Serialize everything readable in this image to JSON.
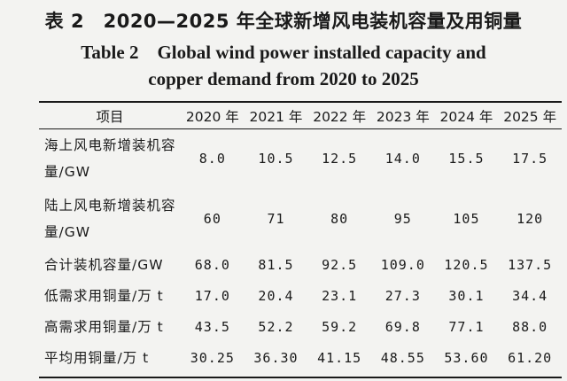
{
  "title_cn": "表 2　2020—2025 年全球新增风电装机容量及用铜量",
  "title_en_line1": "Table 2　Global wind power installed capacity and",
  "title_en_line2": "copper demand from 2020 to 2025",
  "table": {
    "headers": [
      "项目",
      "2020 年",
      "2021 年",
      "2022 年",
      "2023 年",
      "2024 年",
      "2025 年"
    ],
    "rows": [
      {
        "label": "海上风电新增装机容量/GW",
        "values": [
          "8.0",
          "10.5",
          "12.5",
          "14.0",
          "15.5",
          "17.5"
        ]
      },
      {
        "label": "陆上风电新增装机容量/GW",
        "values": [
          "60",
          "71",
          "80",
          "95",
          "105",
          "120"
        ]
      },
      {
        "label": "合计装机容量/GW",
        "values": [
          "68.0",
          "81.5",
          "92.5",
          "109.0",
          "120.5",
          "137.5"
        ]
      },
      {
        "label": "低需求用铜量/万 t",
        "values": [
          "17.0",
          "20.4",
          "23.1",
          "27.3",
          "30.1",
          "34.4"
        ]
      },
      {
        "label": "高需求用铜量/万 t",
        "values": [
          "43.5",
          "52.2",
          "59.2",
          "69.8",
          "77.1",
          "88.0"
        ]
      },
      {
        "label": "平均用铜量/万 t",
        "values": [
          "30.25",
          "36.30",
          "41.15",
          "48.55",
          "53.60",
          "61.20"
        ]
      }
    ]
  }
}
